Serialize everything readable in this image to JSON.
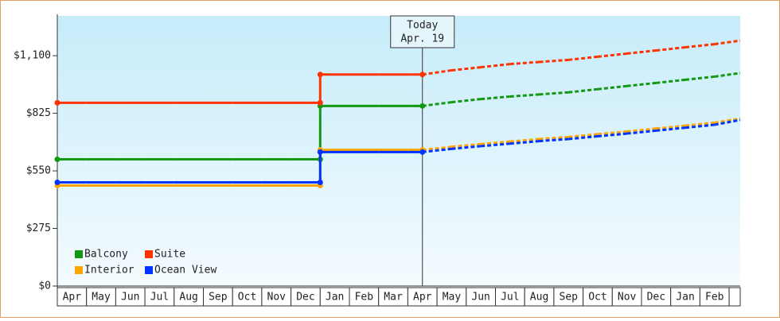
{
  "chart_data": {
    "type": "line",
    "annotation": {
      "text": "Today",
      "date": "Apr. 19"
    },
    "categories": [
      "Apr",
      "May",
      "Jun",
      "Jul",
      "Aug",
      "Sep",
      "Oct",
      "Nov",
      "Dec",
      "Jan",
      "Feb",
      "Mar",
      "Apr",
      "May",
      "Jun",
      "Jul",
      "Aug",
      "Sep",
      "Oct",
      "Nov",
      "Dec",
      "Jan",
      "Feb",
      null
    ],
    "series": [
      {
        "name": "Balcony",
        "color": "#119911",
        "values": [
          605,
          605,
          605,
          605,
          605,
          605,
          605,
          605,
          605,
          860,
          860,
          860,
          860,
          null,
          null,
          null,
          null,
          null,
          null,
          null,
          null,
          null,
          null,
          null
        ],
        "forecast": [
          null,
          null,
          null,
          null,
          null,
          null,
          null,
          null,
          null,
          null,
          null,
          null,
          860,
          878,
          893,
          905,
          915,
          925,
          940,
          955,
          970,
          985,
          1000,
          1017
        ]
      },
      {
        "name": "Suite",
        "color": "#ff3300",
        "values": [
          875,
          875,
          875,
          875,
          875,
          875,
          875,
          875,
          875,
          1010,
          1010,
          1010,
          1010,
          null,
          null,
          null,
          null,
          null,
          null,
          null,
          null,
          null,
          null,
          null
        ],
        "forecast": [
          null,
          null,
          null,
          null,
          null,
          null,
          null,
          null,
          null,
          null,
          null,
          null,
          1010,
          1030,
          1045,
          1060,
          1070,
          1080,
          1095,
          1110,
          1125,
          1140,
          1155,
          1172
        ]
      },
      {
        "name": "Interior",
        "color": "#ffa500",
        "values": [
          480,
          480,
          480,
          480,
          480,
          480,
          480,
          480,
          480,
          650,
          650,
          650,
          650,
          null,
          null,
          null,
          null,
          null,
          null,
          null,
          null,
          null,
          null,
          null
        ],
        "forecast": [
          null,
          null,
          null,
          null,
          null,
          null,
          null,
          null,
          null,
          null,
          null,
          null,
          650,
          665,
          678,
          690,
          702,
          712,
          725,
          738,
          752,
          766,
          780,
          800
        ]
      },
      {
        "name": "Ocean View",
        "color": "#0033ff",
        "values": [
          495,
          495,
          495,
          495,
          495,
          495,
          495,
          495,
          495,
          640,
          640,
          640,
          640,
          null,
          null,
          null,
          null,
          null,
          null,
          null,
          null,
          null,
          null,
          null
        ],
        "forecast": [
          null,
          null,
          null,
          null,
          null,
          null,
          null,
          null,
          null,
          null,
          null,
          null,
          640,
          655,
          668,
          680,
          692,
          702,
          715,
          728,
          742,
          756,
          770,
          793
        ]
      }
    ],
    "ylim": [
      0,
      1290
    ],
    "yticks": [
      {
        "value": 0,
        "label": "$0"
      },
      {
        "value": 275,
        "label": "$275"
      },
      {
        "value": 550,
        "label": "$550"
      },
      {
        "value": 825,
        "label": "$825"
      },
      {
        "value": 1100,
        "label": "$1,100"
      }
    ],
    "legend": "bottom-left"
  }
}
